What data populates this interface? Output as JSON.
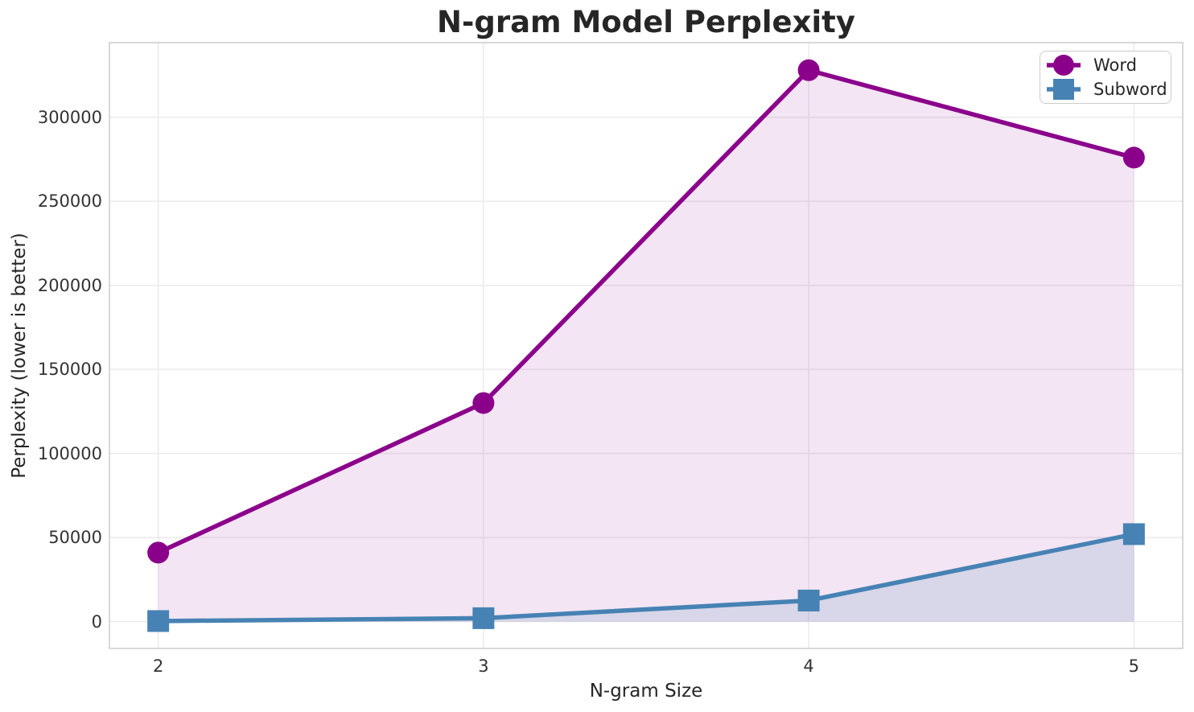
{
  "chart_data": {
    "type": "line",
    "title": "N-gram Model Perplexity",
    "xlabel": "N-gram Size",
    "ylabel": "Perplexity (lower is better)",
    "x": [
      2,
      3,
      4,
      5
    ],
    "xtick_labels": [
      "2",
      "3",
      "4",
      "5"
    ],
    "yticks": [
      0,
      50000,
      100000,
      150000,
      200000,
      250000,
      300000
    ],
    "ytick_labels": [
      "0",
      "50000",
      "100000",
      "150000",
      "200000",
      "250000",
      "300000"
    ],
    "xlim": [
      1.85,
      5.15
    ],
    "ylim": [
      -16000,
      344400
    ],
    "grid": true,
    "legend_position": "upper right",
    "fill_baseline": 0,
    "series": [
      {
        "name": "Word",
        "color": "#8B008B",
        "marker": "circle",
        "fill_alpha": 0.1,
        "values": [
          41000,
          130000,
          328000,
          276000
        ]
      },
      {
        "name": "Subword",
        "color": "#4682B4",
        "marker": "square",
        "fill_alpha": 0.15,
        "values": [
          300,
          2000,
          12500,
          52000
        ]
      }
    ]
  },
  "styles": {
    "grid_color": "#ebebeb",
    "spine_color": "#cccccc",
    "text_color": "#262626",
    "legend_border": "#cccccc",
    "background": "#ffffff"
  }
}
